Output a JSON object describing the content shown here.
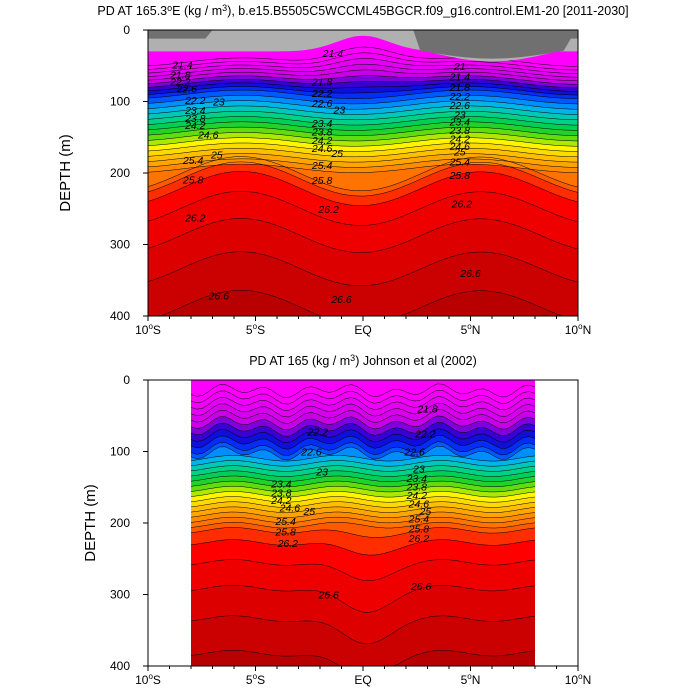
{
  "chart_data": [
    {
      "type": "contour",
      "title_prefix": "PD AT 165.3",
      "title_sup_deg": "o",
      "title_mid": "E (kg / m",
      "title_sup_3": "3",
      "title_suffix": "), b.e15.B5505C5WCCML45BGCR.f09_g16.control.EM1-20 [2011-2030]",
      "ylabel": "DEPTH (m)",
      "xlim": [
        -10,
        10
      ],
      "ylim": [
        400,
        0
      ],
      "x_ticks": [
        {
          "v": -10,
          "label": "10",
          "sup": "o",
          "suffix": "S"
        },
        {
          "v": -5,
          "label": "5",
          "sup": "o",
          "suffix": "S"
        },
        {
          "v": 0,
          "label": "EQ",
          "sup": "",
          "suffix": ""
        },
        {
          "v": 5,
          "label": "5",
          "sup": "o",
          "suffix": "N"
        },
        {
          "v": 10,
          "label": "10",
          "sup": "o",
          "suffix": "N"
        }
      ],
      "y_ticks": [
        "0",
        "100",
        "200",
        "300",
        "400"
      ],
      "x_extent": [
        -10,
        10
      ],
      "level_step": 0.2,
      "level_min": 20.8,
      "level_max": 27.0,
      "contour_labels": [
        {
          "text": "21.4",
          "x": -8.4,
          "y": 48
        },
        {
          "text": "21.8",
          "x": -8.5,
          "y": 62
        },
        {
          "text": "22.2",
          "x": -8.5,
          "y": 72
        },
        {
          "text": "22.6",
          "x": -8.2,
          "y": 82
        },
        {
          "text": "22.2",
          "x": -7.8,
          "y": 98
        },
        {
          "text": "23",
          "x": -6.7,
          "y": 100
        },
        {
          "text": "23.4",
          "x": -7.8,
          "y": 112
        },
        {
          "text": "23.8",
          "x": -7.8,
          "y": 123
        },
        {
          "text": "24.2",
          "x": -7.8,
          "y": 133
        },
        {
          "text": "24.6",
          "x": -7.2,
          "y": 146
        },
        {
          "text": "25",
          "x": -6.8,
          "y": 174
        },
        {
          "text": "25.4",
          "x": -7.9,
          "y": 182
        },
        {
          "text": "25.8",
          "x": -7.9,
          "y": 209
        },
        {
          "text": "26.2",
          "x": -7.8,
          "y": 262
        },
        {
          "text": "26.6",
          "x": -6.7,
          "y": 371
        },
        {
          "text": "21.4",
          "x": -1.4,
          "y": 32
        },
        {
          "text": "21.8",
          "x": -1.9,
          "y": 72
        },
        {
          "text": "22.2",
          "x": -1.9,
          "y": 88
        },
        {
          "text": "22.6",
          "x": -1.9,
          "y": 102
        },
        {
          "text": "23",
          "x": -1.1,
          "y": 111
        },
        {
          "text": "23.4",
          "x": -1.9,
          "y": 130
        },
        {
          "text": "23.8",
          "x": -1.9,
          "y": 142
        },
        {
          "text": "24.2",
          "x": -1.9,
          "y": 154
        },
        {
          "text": "24.6",
          "x": -1.9,
          "y": 165
        },
        {
          "text": "25",
          "x": -1.2,
          "y": 172
        },
        {
          "text": "25.4",
          "x": -1.9,
          "y": 189
        },
        {
          "text": "25.8",
          "x": -1.9,
          "y": 210
        },
        {
          "text": "26.2",
          "x": -1.6,
          "y": 250
        },
        {
          "text": "26.6",
          "x": -1.0,
          "y": 376
        },
        {
          "text": "21",
          "x": 4.5,
          "y": 50
        },
        {
          "text": "21.4",
          "x": 4.5,
          "y": 65
        },
        {
          "text": "21.8",
          "x": 4.5,
          "y": 80
        },
        {
          "text": "22.2",
          "x": 4.5,
          "y": 92
        },
        {
          "text": "22.6",
          "x": 4.5,
          "y": 105
        },
        {
          "text": "23",
          "x": 4.5,
          "y": 118
        },
        {
          "text": "23.4",
          "x": 4.5,
          "y": 128
        },
        {
          "text": "23.8",
          "x": 4.5,
          "y": 140
        },
        {
          "text": "24.2",
          "x": 4.5,
          "y": 152
        },
        {
          "text": "24.6",
          "x": 4.5,
          "y": 162
        },
        {
          "text": "25",
          "x": 4.5,
          "y": 170
        },
        {
          "text": "25.4",
          "x": 4.5,
          "y": 184
        },
        {
          "text": "25.8",
          "x": 4.5,
          "y": 203
        },
        {
          "text": "26.2",
          "x": 4.6,
          "y": 243
        },
        {
          "text": "26.6",
          "x": 5.0,
          "y": 340
        }
      ]
    },
    {
      "type": "contour",
      "title_prefix": "PD AT 165 (kg / m",
      "title_sup_3": "3",
      "title_suffix": ") Johnson et al (2002)",
      "ylabel": "DEPTH (m)",
      "xlim": [
        -10,
        10
      ],
      "ylim": [
        400,
        0
      ],
      "x_ticks": [
        {
          "v": -10,
          "label": "10",
          "sup": "o",
          "suffix": "S"
        },
        {
          "v": -5,
          "label": "5",
          "sup": "o",
          "suffix": "S"
        },
        {
          "v": 0,
          "label": "EQ",
          "sup": "",
          "suffix": ""
        },
        {
          "v": 5,
          "label": "5",
          "sup": "o",
          "suffix": "N"
        },
        {
          "v": 10,
          "label": "10",
          "sup": "o",
          "suffix": "N"
        }
      ],
      "y_ticks": [
        "0",
        "100",
        "200",
        "300",
        "400"
      ],
      "x_extent": [
        -8,
        8
      ],
      "level_step": 0.2,
      "level_min": 20.8,
      "level_max": 27.0,
      "contour_labels": [
        {
          "text": "21.8",
          "x": 3.0,
          "y": 40
        },
        {
          "text": "22.2",
          "x": -2.1,
          "y": 72
        },
        {
          "text": "22.2",
          "x": 2.9,
          "y": 75
        },
        {
          "text": "22.6",
          "x": -2.4,
          "y": 100
        },
        {
          "text": "22.6",
          "x": 2.4,
          "y": 100
        },
        {
          "text": "23",
          "x": -1.9,
          "y": 128
        },
        {
          "text": "23",
          "x": 2.6,
          "y": 124
        },
        {
          "text": "23.4",
          "x": -3.8,
          "y": 145
        },
        {
          "text": "23.4",
          "x": 2.5,
          "y": 137
        },
        {
          "text": "23.8",
          "x": -3.8,
          "y": 157
        },
        {
          "text": "23.8",
          "x": 2.5,
          "y": 149
        },
        {
          "text": "24.2",
          "x": -3.8,
          "y": 168
        },
        {
          "text": "24.2",
          "x": 2.5,
          "y": 161
        },
        {
          "text": "24.6",
          "x": -3.4,
          "y": 178
        },
        {
          "text": "24.6",
          "x": 2.6,
          "y": 173
        },
        {
          "text": "25",
          "x": -2.5,
          "y": 183
        },
        {
          "text": "25",
          "x": 2.9,
          "y": 183
        },
        {
          "text": "25.4",
          "x": -3.6,
          "y": 197
        },
        {
          "text": "25.4",
          "x": 2.6,
          "y": 194
        },
        {
          "text": "25.8",
          "x": -3.6,
          "y": 212
        },
        {
          "text": "25.8",
          "x": 2.6,
          "y": 208
        },
        {
          "text": "26.2",
          "x": -3.5,
          "y": 228
        },
        {
          "text": "26.2",
          "x": 2.6,
          "y": 221
        },
        {
          "text": "26.6",
          "x": -1.6,
          "y": 300
        },
        {
          "text": "26.6",
          "x": 2.7,
          "y": 288
        }
      ]
    }
  ]
}
